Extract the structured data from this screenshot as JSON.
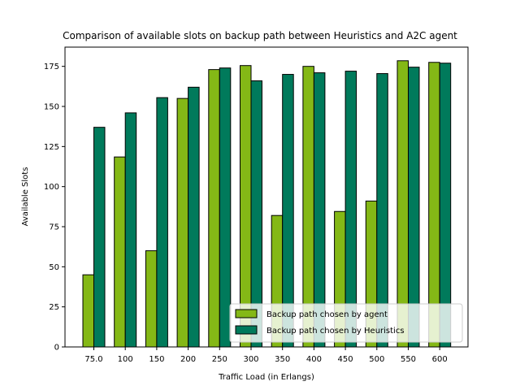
{
  "chart_data": {
    "type": "bar",
    "title": "Comparison of available slots on backup path between Heuristics and A2C agent",
    "xlabel": "Traffic Load (in Erlangs)",
    "ylabel": "Available Slots",
    "categories": [
      "75.0",
      "100",
      "150",
      "200",
      "250",
      "300",
      "350",
      "400",
      "450",
      "500",
      "550",
      "600"
    ],
    "ylim": [
      0,
      187
    ],
    "yticks": [
      0,
      25,
      50,
      75,
      100,
      125,
      150,
      175
    ],
    "grid": false,
    "legend_position": "lower-right",
    "series": [
      {
        "name": "Backup path chosen by agent",
        "color": "#84b816",
        "values": [
          45,
          118.5,
          60,
          155,
          173,
          175.5,
          82,
          175,
          84.5,
          91,
          178.5,
          177.5
        ]
      },
      {
        "name": "Backup path chosen by Heuristics",
        "color": "#007a5b",
        "values": [
          137,
          146,
          155.5,
          162,
          174,
          166,
          170,
          171,
          172,
          170.5,
          174.5,
          177
        ]
      }
    ]
  }
}
